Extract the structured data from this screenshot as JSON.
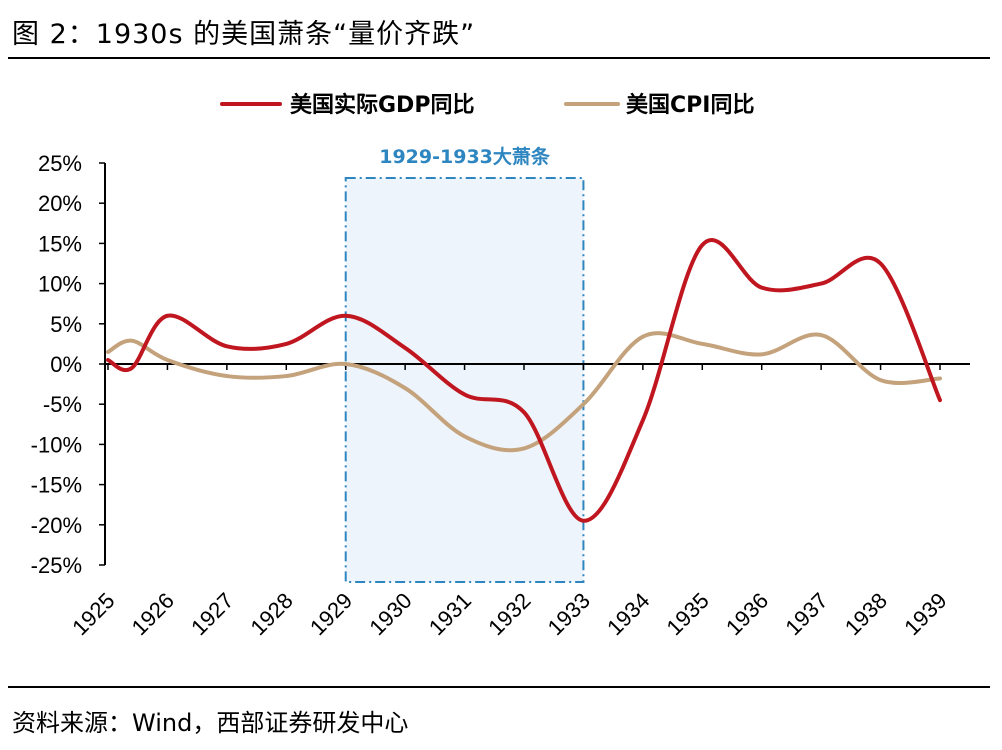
{
  "figure": {
    "title": "图 2：1930s 的美国萧条“量价齐跌”",
    "source": "资料来源：Wind，西部证券研发中心"
  },
  "colors": {
    "gdp": "#c0161f",
    "cpi": "#c4a27c",
    "band_fill": "#eef4fb",
    "band_border": "#2e86c1",
    "band_text": "#2e86c1"
  },
  "chart_data": {
    "type": "line",
    "title": "",
    "xlabel": "",
    "ylabel": "",
    "categories": [
      "1925",
      "1926",
      "1927",
      "1928",
      "1929",
      "1930",
      "1931",
      "1932",
      "1933",
      "1934",
      "1935",
      "1936",
      "1937",
      "1938",
      "1939"
    ],
    "ylim": [
      -25,
      25
    ],
    "yticks": [
      25,
      20,
      15,
      10,
      5,
      0,
      -5,
      -10,
      -15,
      -20,
      -25
    ],
    "ytick_labels": [
      "25%",
      "20%",
      "15%",
      "10%",
      "5%",
      "0%",
      "-5%",
      "-10%",
      "-15%",
      "-20%",
      "-25%"
    ],
    "grid": false,
    "legend_position": "top",
    "series": [
      {
        "name": "美国实际GDP同比",
        "color": "#c0161f",
        "points": [
          {
            "x": 1925.0,
            "y": 0.5
          },
          {
            "x": 1925.4,
            "y": -0.5
          },
          {
            "x": 1926.0,
            "y": 6.0
          },
          {
            "x": 1927.0,
            "y": 2.2
          },
          {
            "x": 1928.0,
            "y": 2.5
          },
          {
            "x": 1929.0,
            "y": 6.0
          },
          {
            "x": 1930.0,
            "y": 2.0
          },
          {
            "x": 1931.0,
            "y": -3.8
          },
          {
            "x": 1932.0,
            "y": -6.0
          },
          {
            "x": 1933.0,
            "y": -19.5
          },
          {
            "x": 1934.0,
            "y": -7.0
          },
          {
            "x": 1935.0,
            "y": 14.8
          },
          {
            "x": 1936.0,
            "y": 9.5
          },
          {
            "x": 1937.0,
            "y": 10.0
          },
          {
            "x": 1938.0,
            "y": 12.5
          },
          {
            "x": 1939.0,
            "y": -4.5
          }
        ]
      },
      {
        "name": "美国CPI同比",
        "color": "#c4a27c",
        "points": [
          {
            "x": 1925.0,
            "y": 1.5
          },
          {
            "x": 1925.4,
            "y": 2.9
          },
          {
            "x": 1926.0,
            "y": 0.5
          },
          {
            "x": 1927.0,
            "y": -1.5
          },
          {
            "x": 1928.0,
            "y": -1.5
          },
          {
            "x": 1929.0,
            "y": 0.0
          },
          {
            "x": 1930.0,
            "y": -3.0
          },
          {
            "x": 1931.0,
            "y": -9.0
          },
          {
            "x": 1932.0,
            "y": -10.5
          },
          {
            "x": 1933.0,
            "y": -5.0
          },
          {
            "x": 1934.0,
            "y": 3.4
          },
          {
            "x": 1935.0,
            "y": 2.5
          },
          {
            "x": 1936.0,
            "y": 1.2
          },
          {
            "x": 1937.0,
            "y": 3.6
          },
          {
            "x": 1938.0,
            "y": -2.0
          },
          {
            "x": 1939.0,
            "y": -1.8
          }
        ]
      }
    ],
    "annotations": [
      {
        "label": "1929-1933大萧条",
        "x_start": 1929,
        "x_end": 1933,
        "type": "shaded-band"
      }
    ]
  }
}
